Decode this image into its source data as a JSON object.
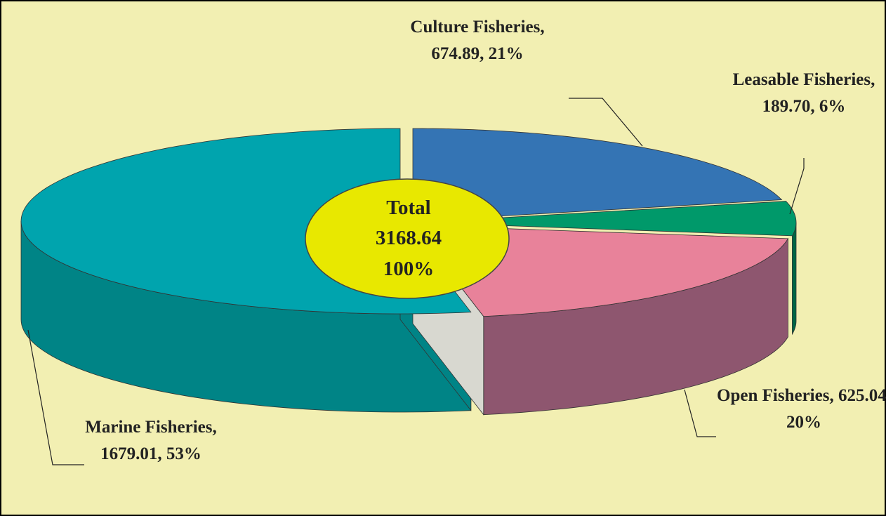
{
  "chart_data": {
    "type": "pie3d",
    "categories": [
      "Culture Fisheries",
      "Leasable Fisheries",
      "Open Fisheries",
      "Marine Fisheries"
    ],
    "values": [
      674.89,
      189.7,
      625.04,
      1679.01
    ],
    "value_labels": [
      "Culture Fisheries, 674.89, 21%",
      "Leasable Fisheries, 189.70, 6%",
      "Open Fisheries, 625.04, 20%",
      "Marine Fisheries, 1679.01, 53%"
    ],
    "colors": [
      "#3474b4",
      "#00996a",
      "#e8829a",
      "#00a4ae"
    ],
    "side_colors": [
      "#24548a",
      "#006644",
      "#8e566f",
      "#008486"
    ],
    "center_text": [
      "Total",
      "3168.64",
      "100%"
    ]
  }
}
